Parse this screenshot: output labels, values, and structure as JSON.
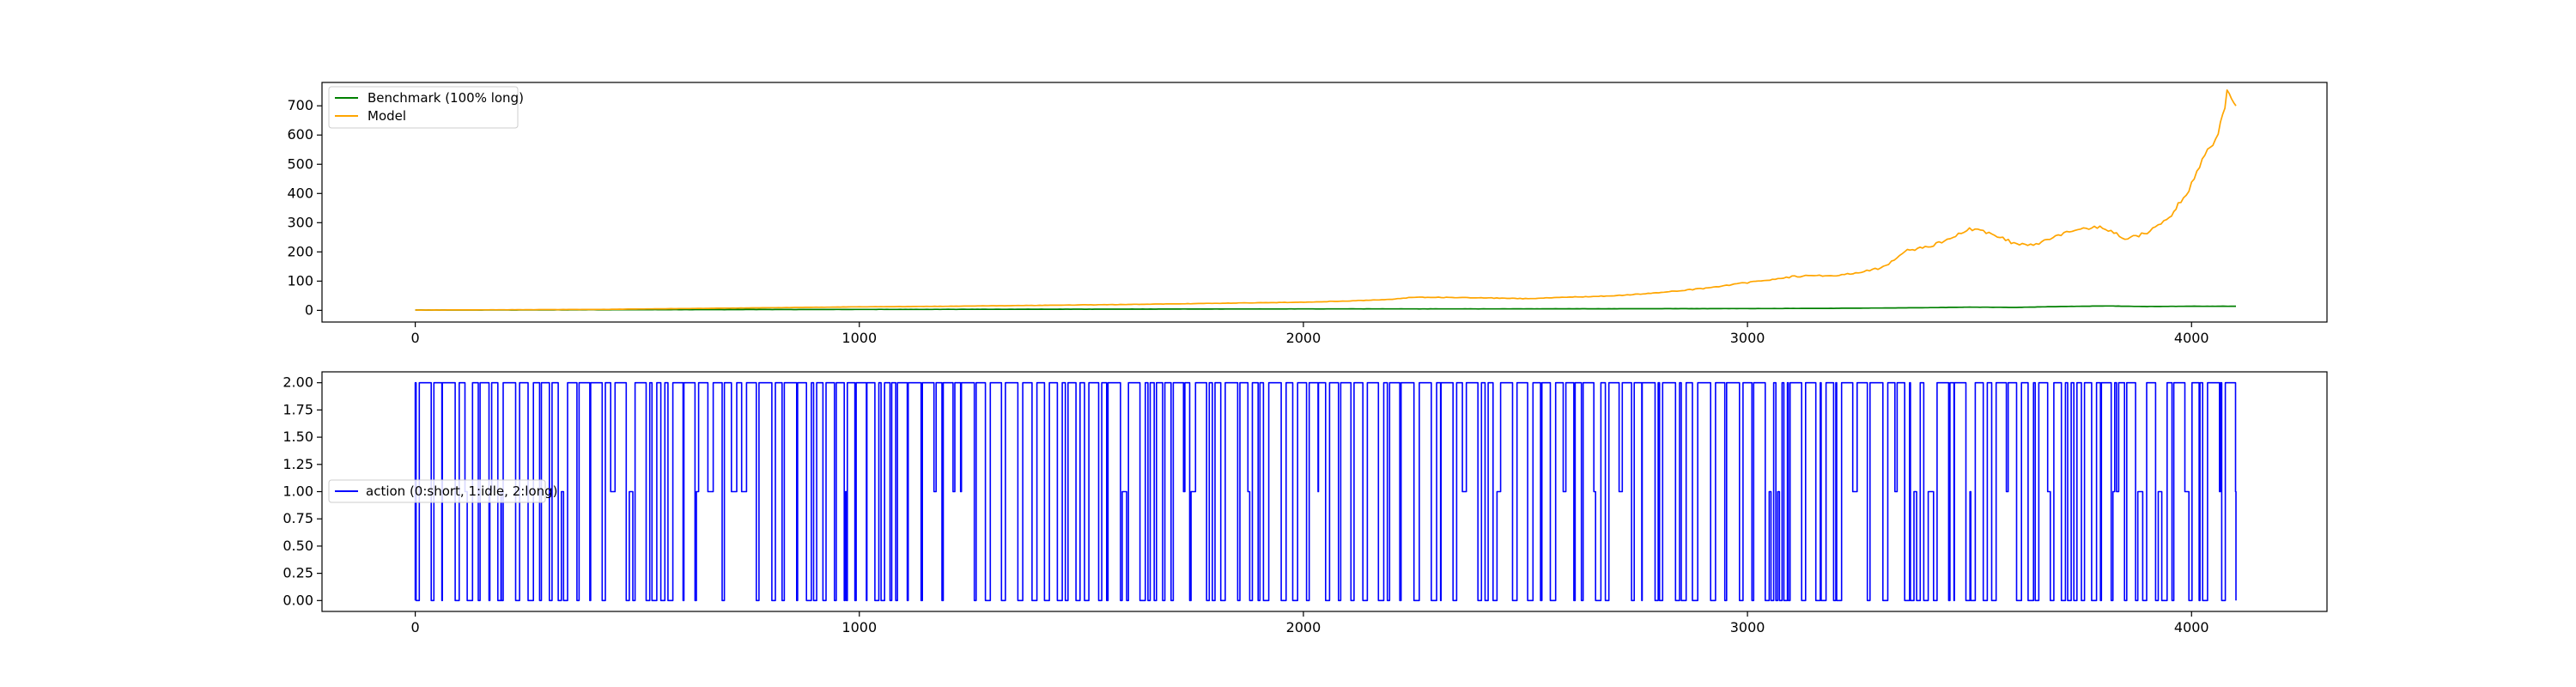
{
  "chart_data": [
    {
      "type": "line",
      "title": "",
      "xlabel": "",
      "ylabel": "",
      "xlim": [
        -210,
        4305
      ],
      "ylim": [
        -40,
        780
      ],
      "x_ticks": [
        0,
        1000,
        2000,
        3000,
        4000
      ],
      "y_ticks": [
        0,
        100,
        200,
        300,
        400,
        500,
        600,
        700
      ],
      "x_tick_labels": [
        "0",
        "1000",
        "2000",
        "3000",
        "4000"
      ],
      "y_tick_labels": [
        "0",
        "100",
        "200",
        "300",
        "400",
        "500",
        "600",
        "700"
      ],
      "grid": false,
      "legend_position": "top-left",
      "series": [
        {
          "name": "Benchmark (100% long)",
          "color": "#008000",
          "x": [
            0,
            300,
            600,
            900,
            1200,
            1500,
            1800,
            2100,
            2400,
            2700,
            3000,
            3200,
            3400,
            3500,
            3600,
            3700,
            3800,
            3900,
            4000,
            4100
          ],
          "y": [
            1,
            1.5,
            2.5,
            3,
            3.5,
            4,
            4.5,
            5,
            5,
            5.5,
            6,
            7,
            9,
            11,
            10,
            13,
            15,
            13,
            14,
            14
          ]
        },
        {
          "name": "Model",
          "color": "#ffa500",
          "x": [
            0,
            200,
            400,
            600,
            800,
            1000,
            1200,
            1400,
            1600,
            1800,
            2000,
            2100,
            2200,
            2250,
            2400,
            2500,
            2600,
            2700,
            2800,
            2900,
            3000,
            3050,
            3100,
            3150,
            3200,
            3250,
            3300,
            3330,
            3360,
            3400,
            3450,
            3500,
            3550,
            3600,
            3650,
            3700,
            3750,
            3800,
            3850,
            3900,
            3950,
            3970,
            4000,
            4030,
            4060,
            4080,
            4100
          ],
          "y": [
            1,
            2,
            3,
            6,
            9,
            12,
            14,
            17,
            20,
            24,
            28,
            32,
            38,
            45,
            43,
            40,
            45,
            50,
            60,
            75,
            95,
            105,
            115,
            120,
            118,
            130,
            145,
            170,
            205,
            215,
            240,
            280,
            260,
            230,
            225,
            255,
            280,
            285,
            245,
            265,
            320,
            360,
            430,
            530,
            600,
            740,
            700
          ]
        }
      ]
    },
    {
      "type": "line",
      "title": "",
      "xlabel": "",
      "ylabel": "",
      "xlim": [
        -210,
        4305
      ],
      "ylim": [
        -0.1,
        2.1
      ],
      "x_ticks": [
        0,
        1000,
        2000,
        3000,
        4000
      ],
      "y_ticks": [
        0,
        0.25,
        0.5,
        0.75,
        1.0,
        1.25,
        1.5,
        1.75,
        2.0
      ],
      "x_tick_labels": [
        "0",
        "1000",
        "2000",
        "3000",
        "4000"
      ],
      "y_tick_labels": [
        "0.00",
        "0.25",
        "0.50",
        "0.75",
        "1.00",
        "1.25",
        "1.50",
        "1.75",
        "2.00"
      ],
      "grid": false,
      "legend_position": "center-left",
      "series": [
        {
          "name": "action (0:short, 1:idle, 2:long)",
          "color": "#0000ff",
          "step": true,
          "x_start": 0,
          "x_end": 4100,
          "seed": 12345,
          "value_levels": [
            0,
            1,
            2
          ]
        }
      ]
    }
  ]
}
